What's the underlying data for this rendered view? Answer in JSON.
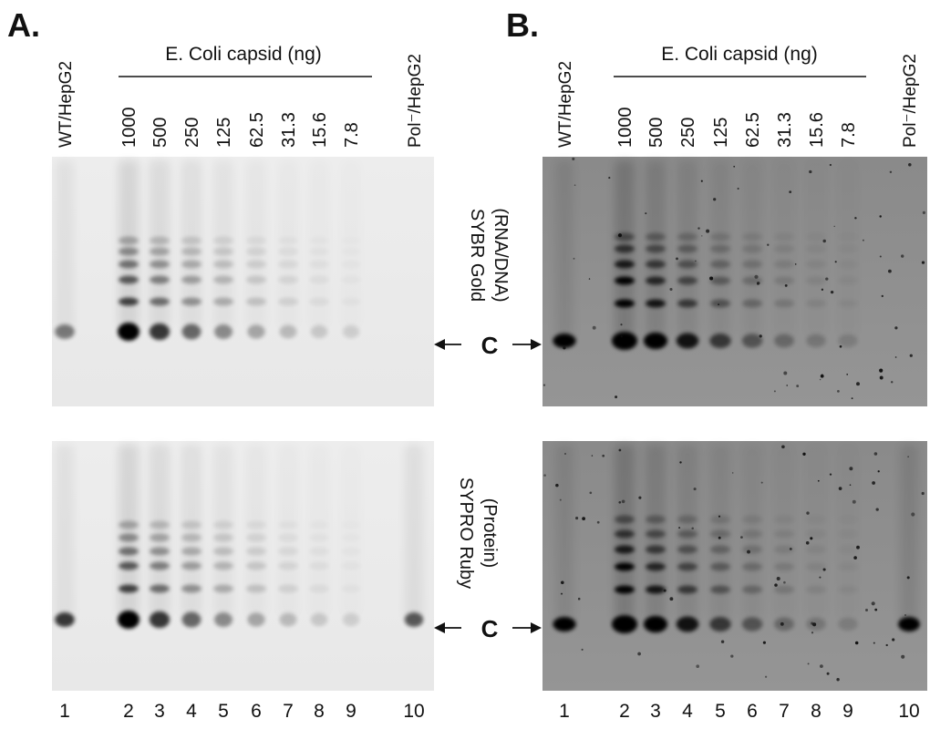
{
  "panels": [
    {
      "letter": "A."
    },
    {
      "letter": "B."
    }
  ],
  "header": {
    "group_label": "E. Coli capsid (ng)"
  },
  "lanes": [
    {
      "number": "1",
      "label": "WT/HepG2"
    },
    {
      "number": "2",
      "label": "1000"
    },
    {
      "number": "3",
      "label": "500"
    },
    {
      "number": "4",
      "label": "250"
    },
    {
      "number": "5",
      "label": "125"
    },
    {
      "number": "6",
      "label": "62.5"
    },
    {
      "number": "7",
      "label": "31.3"
    },
    {
      "number": "8",
      "label": "15.6"
    },
    {
      "number": "9",
      "label": "7.8"
    },
    {
      "number": "10",
      "label": "Pol⁻/HepG2"
    }
  ],
  "stains": [
    {
      "name": "SYBR Gold",
      "target": "(RNA/DNA)"
    },
    {
      "name": "SYPRO Ruby",
      "target": "(Protein)"
    }
  ],
  "band_marker": "C",
  "colors": {
    "gel_light": "#ececec",
    "gel_dark": "#8e8e8e",
    "band": "#0a0a0a"
  }
}
